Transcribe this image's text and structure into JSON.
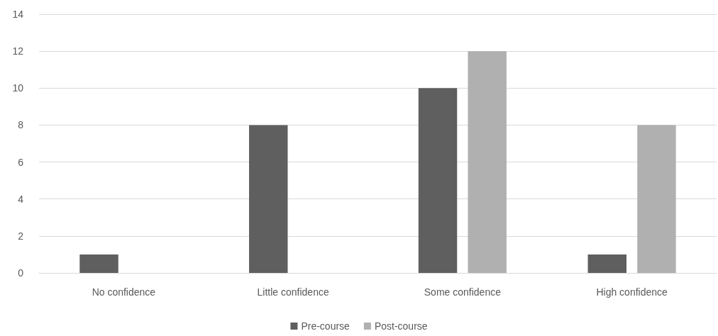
{
  "chart_data": {
    "type": "bar",
    "categories": [
      "No confidence",
      "Little confidence",
      "Some confidence",
      "High confidence"
    ],
    "series": [
      {
        "name": "Pre-course",
        "color": "#5f5f5f",
        "values": [
          1,
          8,
          10,
          1
        ]
      },
      {
        "name": "Post-course",
        "color": "#b0b0b0",
        "values": [
          0,
          0,
          12,
          8
        ]
      }
    ],
    "ylim": [
      0,
      14
    ],
    "yticks": [
      0,
      2,
      4,
      6,
      8,
      10,
      12,
      14
    ],
    "grid": "y",
    "legend": "bottom"
  }
}
